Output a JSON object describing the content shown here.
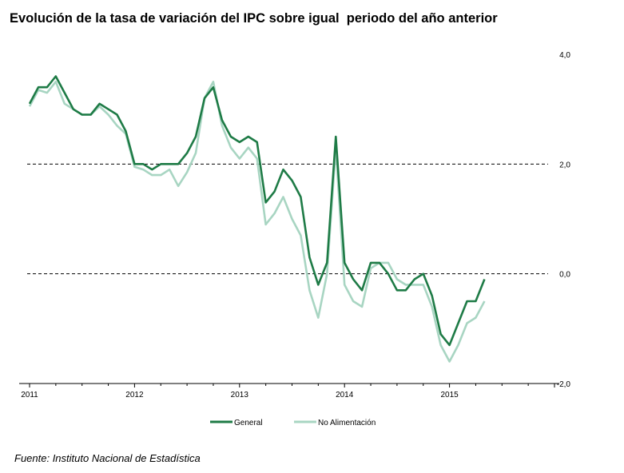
{
  "chart_data": {
    "type": "line",
    "title": "Evolución de la tasa de variación del IPC sobre igual  periodo del año anterior",
    "x_ticks": [
      "2011",
      "2012",
      "2013",
      "2014",
      "2015"
    ],
    "y_ticks": [
      "4,0",
      "2,0",
      "0,0",
      "-2,0"
    ],
    "ylim": [
      -2,
      4
    ],
    "y_axis_side": "right",
    "reference_lines": [
      2,
      0
    ],
    "legend_position": "bottom-center",
    "x_start": "2011-01",
    "series": [
      {
        "name": "General",
        "color": "#1e7b46",
        "values": [
          3.1,
          3.4,
          3.4,
          3.6,
          3.3,
          3.0,
          2.9,
          2.9,
          3.1,
          3.0,
          2.9,
          2.6,
          2.0,
          2.0,
          1.9,
          2.0,
          2.0,
          2.0,
          2.2,
          2.5,
          3.2,
          3.4,
          2.8,
          2.5,
          2.4,
          2.5,
          2.4,
          1.3,
          1.5,
          1.9,
          1.7,
          1.4,
          0.3,
          -0.2,
          0.2,
          2.5,
          0.2,
          -0.1,
          -0.3,
          0.2,
          0.2,
          0.0,
          -0.3,
          -0.3,
          -0.1,
          0.0,
          -0.4,
          -1.1,
          -1.3,
          -0.9,
          -0.5,
          -0.5,
          -0.1
        ]
      },
      {
        "name": "No Alimentación",
        "color": "#a8d5c2",
        "values": [
          3.05,
          3.35,
          3.3,
          3.5,
          3.1,
          3.0,
          2.9,
          2.9,
          3.05,
          2.9,
          2.7,
          2.55,
          1.95,
          1.9,
          1.8,
          1.8,
          1.9,
          1.6,
          1.85,
          2.2,
          3.2,
          3.5,
          2.7,
          2.3,
          2.1,
          2.3,
          2.1,
          0.9,
          1.1,
          1.4,
          1.0,
          0.7,
          -0.3,
          -0.8,
          0.0,
          2.3,
          -0.2,
          -0.5,
          -0.6,
          0.1,
          0.2,
          0.2,
          -0.1,
          -0.2,
          -0.2,
          -0.2,
          -0.6,
          -1.3,
          -1.6,
          -1.3,
          -0.9,
          -0.8,
          -0.5
        ]
      }
    ]
  },
  "source_note": "Fuente: Instituto Nacional de Estadística"
}
